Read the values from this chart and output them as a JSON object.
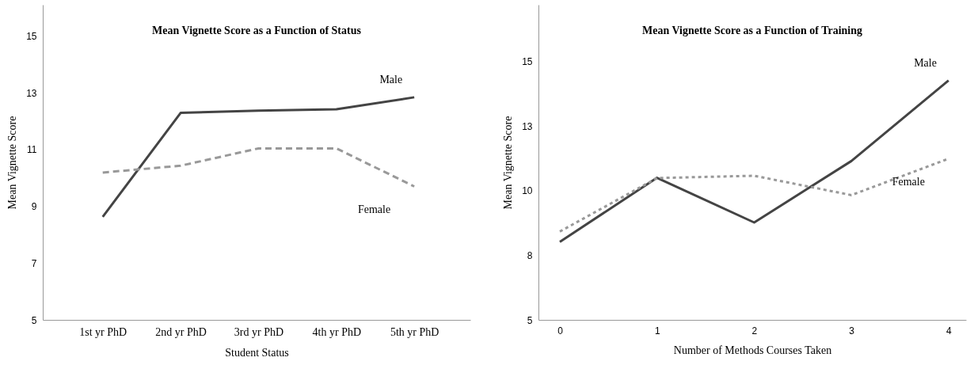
{
  "chart_data": [
    {
      "type": "line",
      "title": "Mean Vignette Score as a Function of Status",
      "xlabel": "Student Status",
      "ylabel": "Mean Vignette Score",
      "categories": [
        "1st yr PhD",
        "2nd yr PhD",
        "3rd yr PhD",
        "4th yr PhD",
        "5th yr PhD"
      ],
      "series": [
        {
          "name": "Male",
          "color": "#444444",
          "line_style": "solid",
          "values": [
            8.63,
            12.29,
            12.37,
            12.42,
            12.84
          ]
        },
        {
          "name": "Female",
          "color": "#999999",
          "line_style": "dashed",
          "values": [
            10.19,
            10.43,
            11.04,
            11.04,
            9.7
          ]
        }
      ],
      "ylim": [
        5,
        16.1
      ],
      "yticks": [
        5,
        7,
        9,
        11,
        13,
        15
      ],
      "grid": false,
      "marker": "none"
    },
    {
      "type": "line",
      "title": "Mean Vignette Score as a Function of Training",
      "xlabel": "Number of Methods Courses Taken",
      "ylabel": "Mean Vignette Score",
      "x": [
        0,
        1,
        2,
        3,
        4
      ],
      "series": [
        {
          "name": "Male",
          "color": "#444444",
          "line_style": "solid",
          "values": [
            8.02,
            10.5,
            8.77,
            11.15,
            14.27
          ]
        },
        {
          "name": "Female",
          "color": "#999999",
          "line_style": "dotted",
          "values": [
            8.42,
            10.49,
            10.58,
            9.83,
            11.24
          ]
        }
      ],
      "xlim": [
        -0.22,
        4.18
      ],
      "xticks": [
        0,
        1,
        2,
        3,
        4
      ],
      "ylim": [
        5,
        17.2
      ],
      "yticks": [
        5,
        {
          "value": 7.5,
          "label": "8"
        },
        10,
        {
          "value": 12.5,
          "label": "13"
        },
        15
      ],
      "grid": false,
      "marker": "none"
    }
  ]
}
